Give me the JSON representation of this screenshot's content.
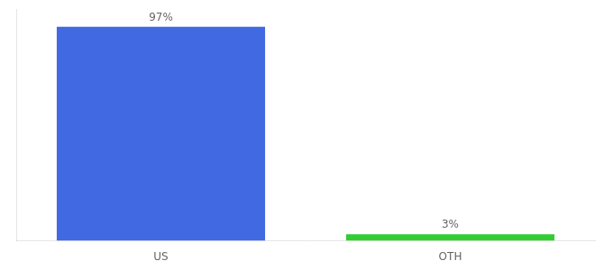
{
  "chart_data": {
    "type": "bar",
    "categories": [
      "US",
      "OTH"
    ],
    "values": [
      97,
      3
    ],
    "value_labels": [
      "97%",
      "3%"
    ],
    "colors": [
      "#4169E1",
      "#33CC33"
    ],
    "ylim": [
      0,
      105
    ],
    "grid": false,
    "data_labels": true,
    "tick_labels": "x"
  }
}
